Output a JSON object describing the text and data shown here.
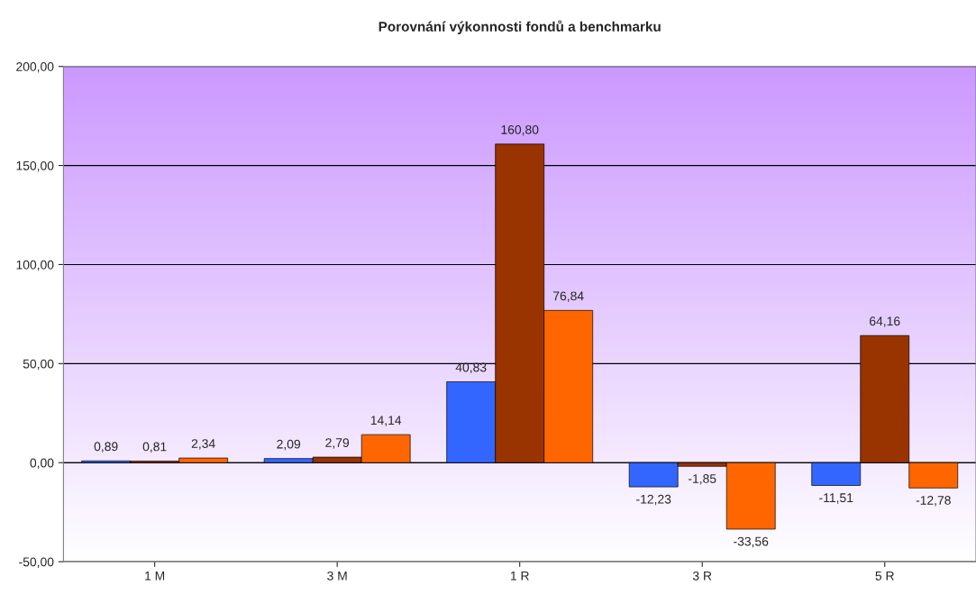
{
  "chart_data": {
    "type": "bar",
    "title": "Porovnání výkonnosti fondů a benchmarku",
    "categories": [
      "1 M",
      "3 M",
      "1 R",
      "3 R",
      "5 R"
    ],
    "series": [
      {
        "color": "#3366ff",
        "values": [
          0.89,
          2.09,
          40.83,
          -12.23,
          -11.51
        ],
        "value_labels": [
          "0,89",
          "2,09",
          "40,83",
          "-12,23",
          "-11,51"
        ]
      },
      {
        "color": "#993300",
        "values": [
          0.81,
          2.79,
          160.8,
          -1.85,
          64.16
        ],
        "value_labels": [
          "0,81",
          "2,79",
          "160,80",
          "-1,85",
          "64,16"
        ]
      },
      {
        "color": "#ff6600",
        "values": [
          2.34,
          14.14,
          76.84,
          -33.56,
          -12.78
        ],
        "value_labels": [
          "2,34",
          "14,14",
          "76,84",
          "-33,56",
          "-12,78"
        ]
      }
    ],
    "ylim": [
      -50,
      200
    ],
    "yticks": [
      {
        "value": -50,
        "label": "-50,00"
      },
      {
        "value": 0,
        "label": "0,00"
      },
      {
        "value": 50,
        "label": "50,00"
      },
      {
        "value": 100,
        "label": "100,00"
      },
      {
        "value": 150,
        "label": "150,00"
      },
      {
        "value": 200,
        "label": "200,00"
      }
    ],
    "grid": "y"
  }
}
